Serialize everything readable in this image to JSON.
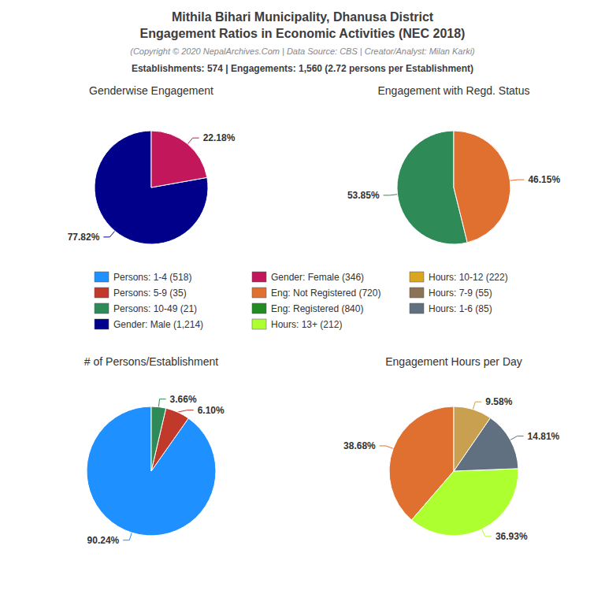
{
  "title": [
    "Mithila Bihari Municipality, Dhanusa District",
    "Engagement Ratios in Economic Activities (NEC 2018)"
  ],
  "subtitle": "(Copyright © 2020 NepalArchives.Com | Data Source: CBS | Creator/Analyst: Milan Karki)",
  "annotations": [
    "Establishments: 574 | Engagements: 1,560 (2.72 persons per Establishment)"
  ],
  "legend_entries": [
    {
      "name": "Persons: 1-4 (518)",
      "color": "#1E90FF"
    },
    {
      "name": "Persons: 5-9 (35)",
      "color": "#C0392B"
    },
    {
      "name": "Persons: 10-49 (21)",
      "color": "#2E8B57"
    },
    {
      "name": "Gender: Male (1,214)",
      "color": "#00008B"
    },
    {
      "name": "Gender: Female (346)",
      "color": "#C2185B"
    },
    {
      "name": "Eng: Not Registered (720)",
      "color": "#E07030"
    },
    {
      "name": "Eng: Registered (840)",
      "color": "#228B22"
    },
    {
      "name": "Hours: 13+ (212)",
      "color": "#ADFF2F"
    },
    {
      "name": "Hours: 10-12 (222)",
      "color": "#DAA520"
    },
    {
      "name": "Hours: 7-9 (55)",
      "color": "#8B7355"
    },
    {
      "name": "Hours: 1-6 (85)",
      "color": "#607080"
    }
  ],
  "chart_data": [
    {
      "type": "pie",
      "title": "Genderwise Engagement",
      "values": [
        77.82,
        22.18
      ],
      "value_labels": [
        "77.82%",
        "22.18%"
      ],
      "colors": [
        "#00008B",
        "#C2185B"
      ],
      "data_labels": true
    },
    {
      "type": "pie",
      "title": "Engagement with Regd. Status",
      "values": [
        53.85,
        46.15
      ],
      "value_labels": [
        "53.85%",
        "46.15%"
      ],
      "colors": [
        "#2E8B57",
        "#E07030"
      ],
      "data_labels": true
    },
    {
      "type": "pie",
      "title": "# of Persons/Establishment",
      "values": [
        90.24,
        6.1,
        3.66
      ],
      "value_labels": [
        "90.24%",
        "6.10%",
        "3.66%"
      ],
      "colors": [
        "#1E90FF",
        "#C0392B",
        "#2E8B57"
      ],
      "data_labels": true
    },
    {
      "type": "pie",
      "title": "Engagement Hours per Day",
      "values": [
        38.68,
        36.93,
        14.81,
        9.58
      ],
      "value_labels": [
        "38.68%",
        "36.93%",
        "14.81%",
        "9.58%"
      ],
      "colors": [
        "#E07030",
        "#ADFF2F",
        "#607080",
        "#C8A050"
      ],
      "data_labels": true
    }
  ]
}
